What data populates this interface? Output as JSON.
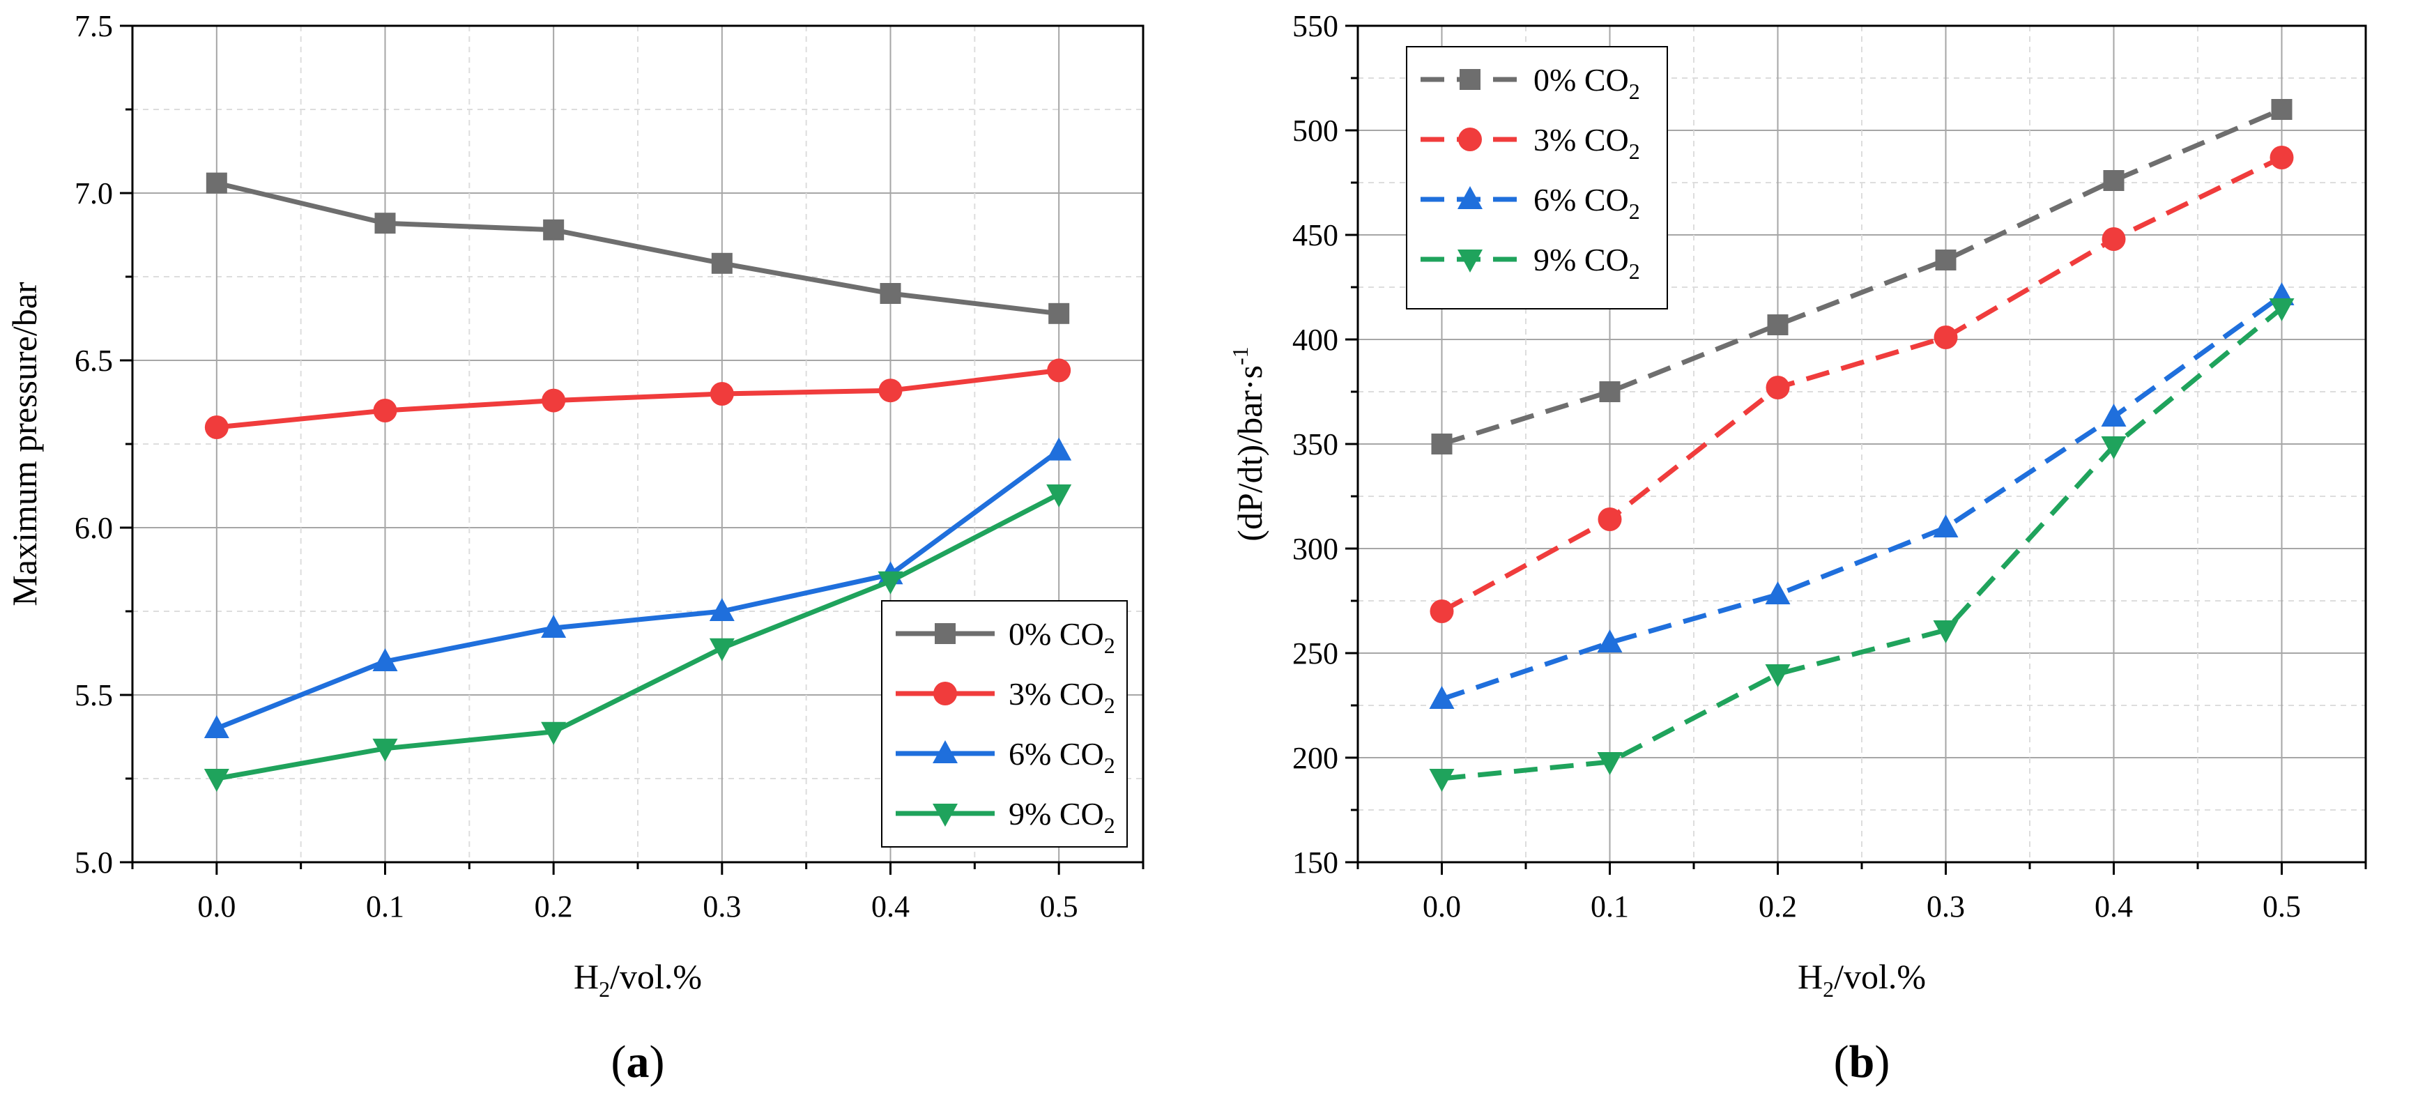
{
  "chart_data": [
    {
      "type": "line",
      "panel": "a",
      "caption": {
        "open": "(",
        "letter": "a",
        "close": ")"
      },
      "xlabel": {
        "main": "H",
        "sub": "2",
        "rest": "/vol.%"
      },
      "ylabel": "Maximum pressure/bar",
      "x": [
        0.0,
        0.1,
        0.2,
        0.3,
        0.4,
        0.5
      ],
      "x_tick_labels": [
        "0.0",
        "0.1",
        "0.2",
        "0.3",
        "0.4",
        "0.5"
      ],
      "y_tick_labels": [
        "5.0",
        "5.5",
        "6.0",
        "6.5",
        "7.0",
        "7.5"
      ],
      "xlim": [
        -0.05,
        0.55
      ],
      "ylim": [
        5.0,
        7.5
      ],
      "grid": true,
      "line_style": "solid",
      "legend_position": "bottom-right",
      "series": [
        {
          "name": "0% CO2",
          "label_main": "0% CO",
          "label_sub": "2",
          "color": "#6e6e6e",
          "marker": "square",
          "values": [
            7.03,
            6.91,
            6.89,
            6.79,
            6.7,
            6.64
          ]
        },
        {
          "name": "3% CO2",
          "label_main": "3% CO",
          "label_sub": "2",
          "color": "#f03c3c",
          "marker": "circle",
          "values": [
            6.3,
            6.35,
            6.38,
            6.4,
            6.41,
            6.47
          ]
        },
        {
          "name": "6% CO2",
          "label_main": "6% CO",
          "label_sub": "2",
          "color": "#1f6fdc",
          "marker": "triangle-up",
          "values": [
            5.4,
            5.6,
            5.7,
            5.75,
            5.86,
            6.23
          ]
        },
        {
          "name": "9% CO2",
          "label_main": "9% CO",
          "label_sub": "2",
          "color": "#1fa35c",
          "marker": "triangle-down",
          "values": [
            5.25,
            5.34,
            5.39,
            5.64,
            5.84,
            6.1
          ]
        }
      ]
    },
    {
      "type": "line",
      "panel": "b",
      "caption": {
        "open": "(",
        "letter": "b",
        "close": ")"
      },
      "xlabel": {
        "main": "H",
        "sub": "2",
        "rest": "/vol.%"
      },
      "ylabel": {
        "main": "(dP/dt)/bar·s",
        "sup": "-1"
      },
      "x": [
        0.0,
        0.1,
        0.2,
        0.3,
        0.4,
        0.5
      ],
      "x_tick_labels": [
        "0.0",
        "0.1",
        "0.2",
        "0.3",
        "0.4",
        "0.5"
      ],
      "y_tick_labels": [
        "150",
        "200",
        "250",
        "300",
        "350",
        "400",
        "450",
        "500",
        "550"
      ],
      "xlim": [
        -0.05,
        0.55
      ],
      "ylim": [
        150,
        550
      ],
      "grid": true,
      "line_style": "dashed",
      "legend_position": "top-left",
      "series": [
        {
          "name": "0% CO2",
          "label_main": "0% CO",
          "label_sub": "2",
          "color": "#6e6e6e",
          "marker": "square",
          "values": [
            350,
            375,
            407,
            438,
            476,
            510
          ]
        },
        {
          "name": "3% CO2",
          "label_main": "3% CO",
          "label_sub": "2",
          "color": "#f03c3c",
          "marker": "circle",
          "values": [
            270,
            314,
            377,
            401,
            448,
            487
          ]
        },
        {
          "name": "6% CO2",
          "label_main": "6% CO",
          "label_sub": "2",
          "color": "#1f6fdc",
          "marker": "triangle-up",
          "values": [
            228,
            255,
            278,
            310,
            363,
            421
          ]
        },
        {
          "name": "9% CO2",
          "label_main": "9% CO",
          "label_sub": "2",
          "color": "#1fa35c",
          "marker": "triangle-down",
          "values": [
            190,
            198,
            240,
            261,
            349,
            415
          ]
        }
      ]
    }
  ]
}
